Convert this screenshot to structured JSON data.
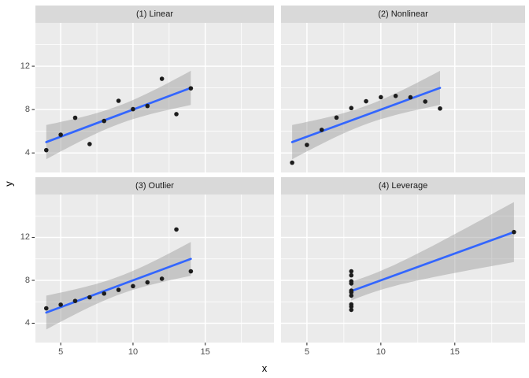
{
  "figure": {
    "colors": {
      "background": "#FFFFFF",
      "panel_bg": "#EBEBEB",
      "strip_bg": "#D9D9D9",
      "strip_text": "#1A1A1A",
      "grid": "#FFFFFF",
      "axis_text": "#4D4D4D",
      "axis_title": "#000000",
      "tick_mark": "#333333",
      "point": "#1C1C1C",
      "smooth_line": "#3366FF",
      "ribbon": "#999999"
    }
  },
  "axes": {
    "x_title": "x",
    "y_title": "y",
    "x_tick_labels": [
      "5",
      "10",
      "15"
    ],
    "y_tick_labels": [
      "4",
      "8",
      "12"
    ],
    "x_ticks": [
      5,
      10,
      15
    ],
    "y_ticks": [
      4,
      8,
      12
    ],
    "x_minor_ticks": [
      7.5,
      12.5,
      17.5
    ],
    "y_minor_ticks": [
      6,
      10,
      14
    ],
    "x_domain": [
      3.25,
      19.75
    ],
    "y_domain": [
      2.2,
      16.0
    ]
  },
  "chart_data": {
    "type": "scatter",
    "title": "",
    "xlabel": "x",
    "ylabel": "y",
    "layout": "2x2 facet grid, shared x and y scales, grid on, no legend",
    "xlim": [
      3.25,
      19.75
    ],
    "ylim": [
      2.2,
      16.0
    ],
    "smooth": {
      "method": "lm",
      "ci_level": 0.95,
      "ci_halfwidth_coef": 2.798,
      "n": 11,
      "x_mean": 9,
      "sxx": 110
    },
    "facets": [
      {
        "label": "(1) Linear",
        "x": [
          10,
          8,
          13,
          9,
          11,
          14,
          6,
          4,
          12,
          7,
          5
        ],
        "y": [
          8.04,
          6.95,
          7.58,
          8.81,
          8.33,
          9.96,
          7.24,
          4.26,
          10.84,
          4.82,
          5.68
        ],
        "fit": {
          "intercept": 3.0,
          "slope": 0.5,
          "x_start": 4,
          "x_end": 14
        }
      },
      {
        "label": "(2) Nonlinear",
        "x": [
          10,
          8,
          13,
          9,
          11,
          14,
          6,
          4,
          12,
          7,
          5
        ],
        "y": [
          9.14,
          8.14,
          8.74,
          8.77,
          9.26,
          8.1,
          6.13,
          3.1,
          9.13,
          7.26,
          4.74
        ],
        "fit": {
          "intercept": 3.0,
          "slope": 0.5,
          "x_start": 4,
          "x_end": 14
        }
      },
      {
        "label": "(3) Outlier",
        "x": [
          10,
          8,
          13,
          9,
          11,
          14,
          6,
          4,
          12,
          7,
          5
        ],
        "y": [
          7.46,
          6.77,
          12.74,
          7.11,
          7.81,
          8.84,
          6.08,
          5.39,
          8.15,
          6.42,
          5.73
        ],
        "fit": {
          "intercept": 3.0,
          "slope": 0.5,
          "x_start": 4,
          "x_end": 14
        }
      },
      {
        "label": "(4) Leverage",
        "x": [
          8,
          8,
          8,
          8,
          8,
          8,
          8,
          19,
          8,
          8,
          8
        ],
        "y": [
          6.58,
          5.76,
          7.71,
          8.84,
          8.47,
          7.04,
          5.25,
          12.5,
          5.56,
          7.91,
          6.89
        ],
        "fit": {
          "intercept": 3.0,
          "slope": 0.5,
          "x_start": 8,
          "x_end": 19
        }
      }
    ]
  }
}
